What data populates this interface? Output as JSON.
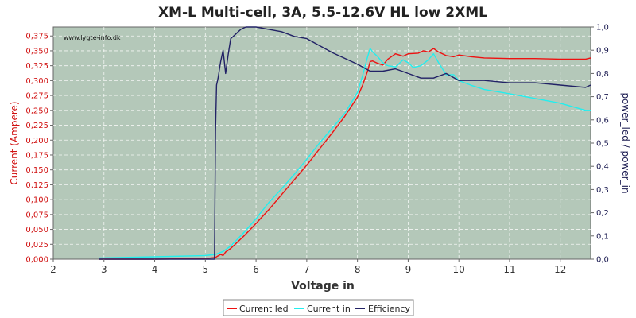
{
  "chart_data": {
    "type": "line",
    "title": "XM-L Multi-cell, 3A, 5.5-12.6V HL low 2XML",
    "watermark": "www.lygte-info.dk",
    "xlabel": "Voltage in",
    "ylabel": "Current (Ampere)",
    "y2label": "power_led / power_in",
    "xlim": [
      2,
      12.6
    ],
    "ylim": [
      0,
      0.39
    ],
    "y2lim": [
      0,
      1.0
    ],
    "xticks": [
      2,
      3,
      4,
      5,
      6,
      7,
      8,
      9,
      10,
      11,
      12
    ],
    "yticks": [
      "0,000",
      "0,025",
      "0,050",
      "0,075",
      "0,100",
      "0,125",
      "0,150",
      "0,175",
      "0,200",
      "0,225",
      "0,250",
      "0,275",
      "0,300",
      "0,325",
      "0,350",
      "0,375"
    ],
    "y2ticks": [
      "0,0",
      "0,1",
      "0,2",
      "0,3",
      "0,4",
      "0,5",
      "0,6",
      "0,7",
      "0,8",
      "0,9",
      "1,0"
    ],
    "grid": true,
    "legend_position": "bottom-center",
    "colors": {
      "plot_bg": "#b4c8b9",
      "current_led": "#ee1111",
      "current_in": "#22eeee",
      "efficiency": "#222266"
    },
    "series": [
      {
        "name": "Current led",
        "axis": "left",
        "x": [
          2.9,
          4.0,
          5.0,
          5.2,
          5.3,
          5.35,
          5.4,
          5.5,
          5.75,
          6.0,
          6.25,
          6.5,
          6.75,
          7.0,
          7.25,
          7.5,
          7.75,
          8.0,
          8.1,
          8.2,
          8.25,
          8.3,
          8.4,
          8.5,
          8.6,
          8.75,
          8.9,
          9.0,
          9.2,
          9.3,
          9.4,
          9.5,
          9.6,
          9.75,
          9.9,
          10.0,
          10.25,
          10.5,
          11.0,
          11.5,
          12.0,
          12.5,
          12.6
        ],
        "values": [
          0.0,
          0.0,
          0.001,
          0.003,
          0.008,
          0.006,
          0.012,
          0.018,
          0.038,
          0.06,
          0.083,
          0.108,
          0.133,
          0.158,
          0.185,
          0.212,
          0.24,
          0.272,
          0.292,
          0.316,
          0.332,
          0.333,
          0.329,
          0.326,
          0.336,
          0.345,
          0.341,
          0.345,
          0.346,
          0.35,
          0.348,
          0.354,
          0.348,
          0.342,
          0.34,
          0.343,
          0.34,
          0.338,
          0.337,
          0.337,
          0.336,
          0.336,
          0.338
        ]
      },
      {
        "name": "Current in",
        "axis": "left",
        "x": [
          2.9,
          4.0,
          5.0,
          5.2,
          5.35,
          5.5,
          5.75,
          6.0,
          6.25,
          6.5,
          6.75,
          7.0,
          7.25,
          7.5,
          7.75,
          8.0,
          8.1,
          8.2,
          8.25,
          8.3,
          8.4,
          8.5,
          8.6,
          8.75,
          8.9,
          9.0,
          9.1,
          9.25,
          9.4,
          9.5,
          9.6,
          9.75,
          9.9,
          10.0,
          10.25,
          10.5,
          11.0,
          11.5,
          12.0,
          12.5,
          12.6
        ],
        "values": [
          0.002,
          0.004,
          0.006,
          0.008,
          0.013,
          0.022,
          0.044,
          0.068,
          0.095,
          0.118,
          0.142,
          0.168,
          0.195,
          0.22,
          0.245,
          0.28,
          0.308,
          0.34,
          0.354,
          0.348,
          0.34,
          0.33,
          0.325,
          0.323,
          0.335,
          0.33,
          0.322,
          0.325,
          0.335,
          0.345,
          0.33,
          0.31,
          0.31,
          0.3,
          0.292,
          0.285,
          0.278,
          0.27,
          0.262,
          0.25,
          0.25
        ]
      },
      {
        "name": "Efficiency",
        "axis": "right",
        "x": [
          2.9,
          4.0,
          5.0,
          5.18,
          5.2,
          5.22,
          5.25,
          5.3,
          5.35,
          5.4,
          5.45,
          5.5,
          5.6,
          5.7,
          5.8,
          5.9,
          6.0,
          6.25,
          6.5,
          6.75,
          7.0,
          7.5,
          8.0,
          8.25,
          8.5,
          8.75,
          9.0,
          9.25,
          9.5,
          9.75,
          10.0,
          10.5,
          11.0,
          11.5,
          12.0,
          12.5,
          12.6
        ],
        "values": [
          0.0,
          0.0,
          0.0,
          0.0,
          0.55,
          0.75,
          0.78,
          0.85,
          0.9,
          0.8,
          0.88,
          0.95,
          0.97,
          0.99,
          1.01,
          1.0,
          1.0,
          0.99,
          0.98,
          0.96,
          0.95,
          0.89,
          0.84,
          0.81,
          0.81,
          0.82,
          0.8,
          0.78,
          0.78,
          0.8,
          0.77,
          0.77,
          0.76,
          0.76,
          0.75,
          0.74,
          0.75
        ]
      }
    ]
  }
}
